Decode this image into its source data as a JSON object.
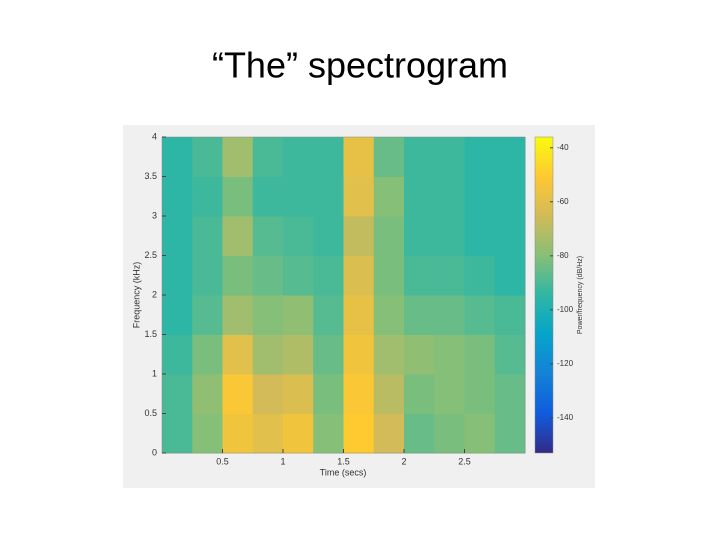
{
  "chart_data": {
    "type": "heatmap",
    "title": "“The” spectrogram",
    "xlabel": "Time (secs)",
    "ylabel": "Frequency (kHz)",
    "colorbar_label": "Power/frequency (dB/Hz)",
    "x": [
      0.125,
      0.375,
      0.625,
      0.875,
      1.125,
      1.375,
      1.625,
      1.875,
      2.125,
      2.375,
      2.625,
      2.875
    ],
    "y": [
      0.25,
      0.75,
      1.25,
      1.75,
      2.25,
      2.75,
      3.25,
      3.75
    ],
    "z": [
      [
        -90,
        -80,
        -55,
        -60,
        -55,
        -80,
        -50,
        -65,
        -85,
        -82,
        -80,
        -85
      ],
      [
        -90,
        -78,
        -52,
        -65,
        -62,
        -82,
        -52,
        -70,
        -82,
        -80,
        -82,
        -85
      ],
      [
        -92,
        -82,
        -60,
        -75,
        -72,
        -85,
        -55,
        -75,
        -78,
        -80,
        -82,
        -88
      ],
      [
        -95,
        -88,
        -75,
        -80,
        -78,
        -88,
        -58,
        -80,
        -85,
        -85,
        -88,
        -90
      ],
      [
        -95,
        -90,
        -82,
        -85,
        -88,
        -90,
        -62,
        -82,
        -90,
        -90,
        -92,
        -95
      ],
      [
        -95,
        -90,
        -75,
        -88,
        -90,
        -92,
        -68,
        -82,
        -92,
        -92,
        -95,
        -95
      ],
      [
        -95,
        -92,
        -82,
        -92,
        -92,
        -92,
        -60,
        -80,
        -92,
        -92,
        -95,
        -95
      ],
      [
        -95,
        -90,
        -75,
        -90,
        -92,
        -92,
        -58,
        -85,
        -92,
        -92,
        -95,
        -95
      ]
    ],
    "xlim": [
      0,
      3
    ],
    "xticks": [
      0.5,
      1,
      1.5,
      2,
      2.5
    ],
    "ylim": [
      0,
      4
    ],
    "yticks": [
      0,
      0.5,
      1,
      1.5,
      2,
      2.5,
      3,
      3.5,
      4
    ],
    "clim": [
      -153,
      -36
    ],
    "cticks": [
      -140,
      -120,
      -100,
      -80,
      -60,
      -40
    ],
    "colormap": [
      "#352a87",
      "#0f5cdd",
      "#1481d6",
      "#06a4ca",
      "#2eb7a4",
      "#87bf77",
      "#d1bb59",
      "#fec832",
      "#f9fb0e"
    ]
  }
}
